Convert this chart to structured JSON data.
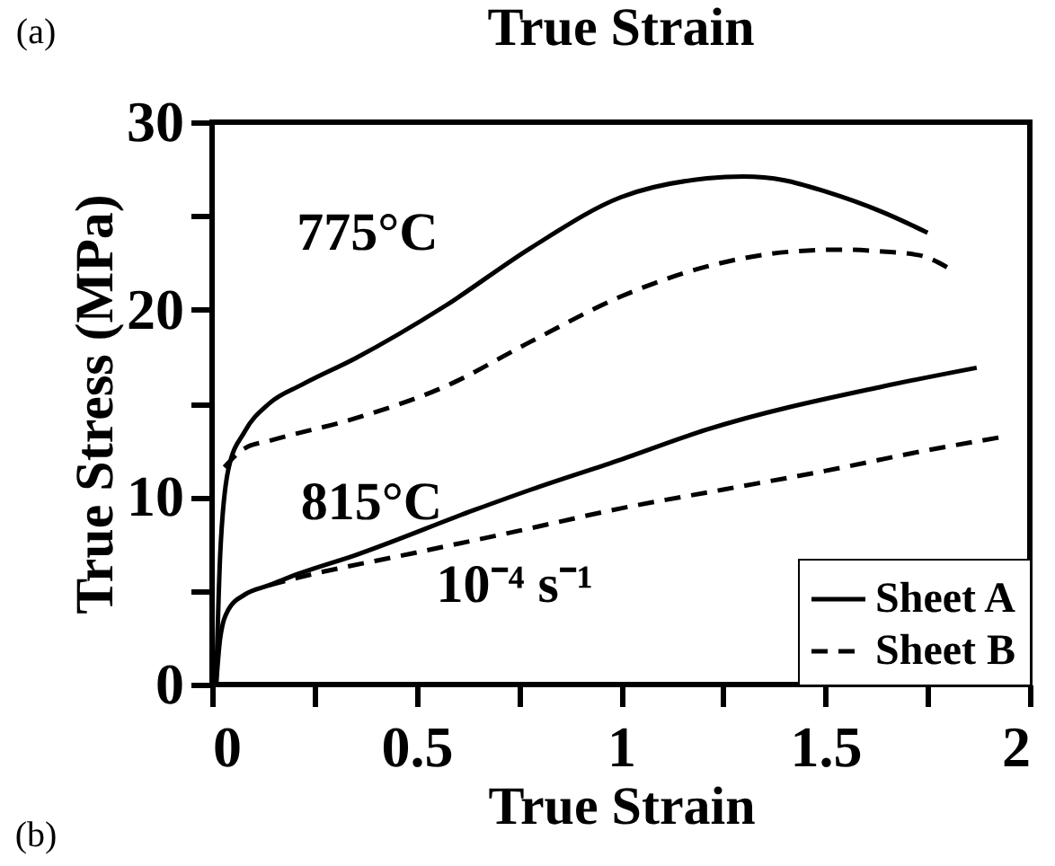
{
  "chart_data": {
    "type": "line",
    "xlabel": "True Strain",
    "ylabel": "True Stress (MPa)",
    "annotations": [
      "(a)",
      "True Strain",
      "(b)",
      "775°C",
      "815°C",
      "10⁻⁴ s⁻¹"
    ],
    "xlim": [
      0,
      2
    ],
    "ylim": [
      0,
      30
    ],
    "xticks": [
      0,
      {
        "value": 0.25,
        "label": null
      },
      0.5,
      {
        "value": 0.75,
        "label": null
      },
      1,
      {
        "value": 1.25,
        "label": null
      },
      1.5,
      {
        "value": 1.75,
        "label": null
      },
      2
    ],
    "yticks": [
      0,
      {
        "value": 5,
        "label": null
      },
      10,
      {
        "value": 15,
        "label": null
      },
      20,
      {
        "value": 25,
        "label": null
      },
      30
    ],
    "grid": false,
    "legend": "bottom right",
    "marker": "none",
    "series": [
      {
        "name": "Sheet A",
        "color": "#000000",
        "line_style": "solid",
        "x": [
          0.01,
          0.02,
          0.04,
          0.08,
          0.14,
          0.22,
          0.35,
          0.57,
          0.78,
          1.0,
          1.21,
          1.3,
          1.4,
          1.5,
          1.64,
          1.75
        ],
        "values": [
          0,
          7,
          11.5,
          13.5,
          15,
          16,
          17.4,
          20.2,
          23.3,
          26,
          27,
          27.1,
          26.9,
          26.3,
          25.2,
          24.1
        ]
      },
      {
        "name": "Sheet B",
        "color": "#000000",
        "line_style": "dashed",
        "x": [
          0.03,
          0.08,
          0.14,
          0.35,
          0.57,
          0.78,
          1.0,
          1.21,
          1.42,
          1.54,
          1.64,
          1.73,
          1.81
        ],
        "values": [
          11.6,
          12.6,
          13,
          14.2,
          15.9,
          18.3,
          20.7,
          22.3,
          23.1,
          23.2,
          23.1,
          22.9,
          22.1
        ]
      },
      {
        "color": "#000000",
        "line_style": "solid",
        "x": [
          0.01,
          0.02,
          0.04,
          0.08,
          0.14,
          0.21,
          0.35,
          0.64,
          0.78,
          1.0,
          1.21,
          1.64,
          1.87
        ],
        "values": [
          0,
          2.5,
          4,
          4.8,
          5.3,
          5.9,
          6.9,
          9.3,
          10.4,
          12,
          13.6,
          15.9,
          16.9
        ]
      },
      {
        "color": "#000000",
        "line_style": "dashed",
        "x": [
          0.14,
          0.21,
          0.49,
          0.75,
          1.0,
          1.25,
          1.5,
          1.75,
          1.93
        ],
        "values": [
          5.3,
          5.7,
          7.0,
          8.2,
          9.4,
          10.4,
          11.4,
          12.5,
          13.2
        ]
      }
    ]
  }
}
